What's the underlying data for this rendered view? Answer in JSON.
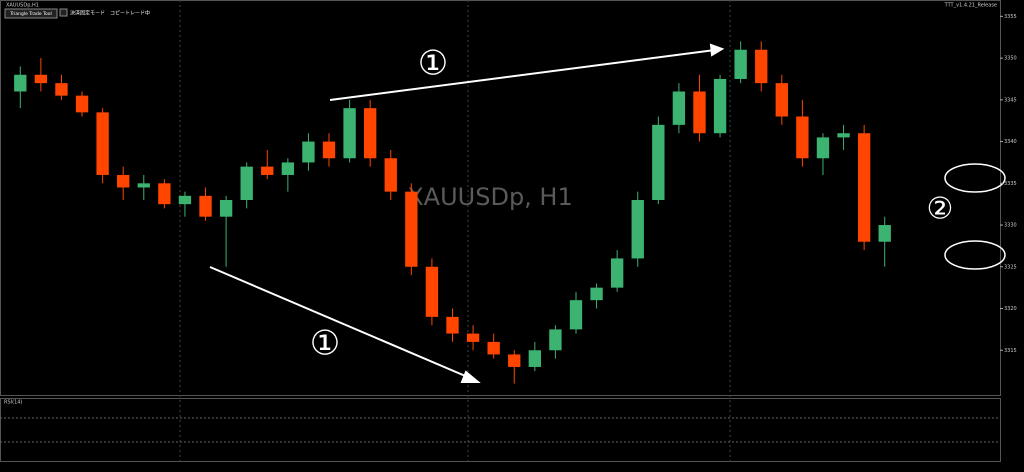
{
  "chart_data": {
    "type": "candlestick",
    "symbol": "XAUUSDp,H1",
    "watermark": "XAUUSDp, H1",
    "version": "TTT_v1.4.21_Release",
    "indicator_label": "RSI(14)",
    "up_color": "#3cb371",
    "down_color": "#ff4500",
    "ylim": [
      3310,
      3356
    ],
    "yticks": [
      3315,
      3320,
      3325,
      3330,
      3335,
      3340,
      3345,
      3350,
      3355
    ],
    "ohlc": [
      [
        3346,
        3349,
        3344,
        3348
      ],
      [
        3348,
        3350,
        3346,
        3347
      ],
      [
        3347,
        3348,
        3345,
        3345.5
      ],
      [
        3345.5,
        3346,
        3343,
        3343.5
      ],
      [
        3343.5,
        3344,
        3335,
        3336
      ],
      [
        3336,
        3337,
        3333,
        3334.5
      ],
      [
        3334.5,
        3336,
        3333,
        3335
      ],
      [
        3335,
        3335.5,
        3332,
        3332.5
      ],
      [
        3332.5,
        3334,
        3331,
        3333.5
      ],
      [
        3333.5,
        3334.5,
        3330.5,
        3331
      ],
      [
        3331,
        3333.5,
        3325,
        3333
      ],
      [
        3333,
        3337.5,
        3332,
        3337
      ],
      [
        3337,
        3339,
        3335.5,
        3336
      ],
      [
        3336,
        3338,
        3334,
        3337.5
      ],
      [
        3337.5,
        3341,
        3336.5,
        3340
      ],
      [
        3340,
        3341,
        3337,
        3338
      ],
      [
        3338,
        3345,
        3337.5,
        3344
      ],
      [
        3344,
        3345,
        3337,
        3338
      ],
      [
        3338,
        3339,
        3333,
        3334
      ],
      [
        3334,
        3335,
        3324,
        3325
      ],
      [
        3325,
        3326,
        3318,
        3319
      ],
      [
        3319,
        3320,
        3316,
        3317
      ],
      [
        3317,
        3318,
        3315,
        3316
      ],
      [
        3316,
        3317,
        3314,
        3314.5
      ],
      [
        3314.5,
        3315,
        3311,
        3313
      ],
      [
        3313,
        3316,
        3312.5,
        3315
      ],
      [
        3315,
        3318,
        3314,
        3317.5
      ],
      [
        3317.5,
        3322,
        3317,
        3321
      ],
      [
        3321,
        3323,
        3320,
        3322.5
      ],
      [
        3322.5,
        3327,
        3322,
        3326
      ],
      [
        3326,
        3334,
        3325,
        3333
      ],
      [
        3333,
        3343,
        3332.5,
        3342
      ],
      [
        3342,
        3347,
        3341,
        3346
      ],
      [
        3346,
        3348,
        3340,
        3341
      ],
      [
        3341,
        3348,
        3340.5,
        3347.5
      ],
      [
        3347.5,
        3352,
        3347,
        3351
      ],
      [
        3351,
        3352,
        3346,
        3347
      ],
      [
        3347,
        3348,
        3342,
        3343
      ],
      [
        3343,
        3345,
        3337,
        3338
      ],
      [
        3338,
        3341,
        3336,
        3340.5
      ],
      [
        3340.5,
        3342,
        3339,
        3341
      ],
      [
        3341,
        3342,
        3327,
        3328
      ],
      [
        3328,
        3331,
        3325,
        3330
      ]
    ],
    "annotations": [
      "①",
      "①",
      "②"
    ]
  },
  "toolbar": {
    "buttons": [
      "Triangle Trade Tool",
      "決済固定モード",
      "コピートレード中"
    ]
  }
}
